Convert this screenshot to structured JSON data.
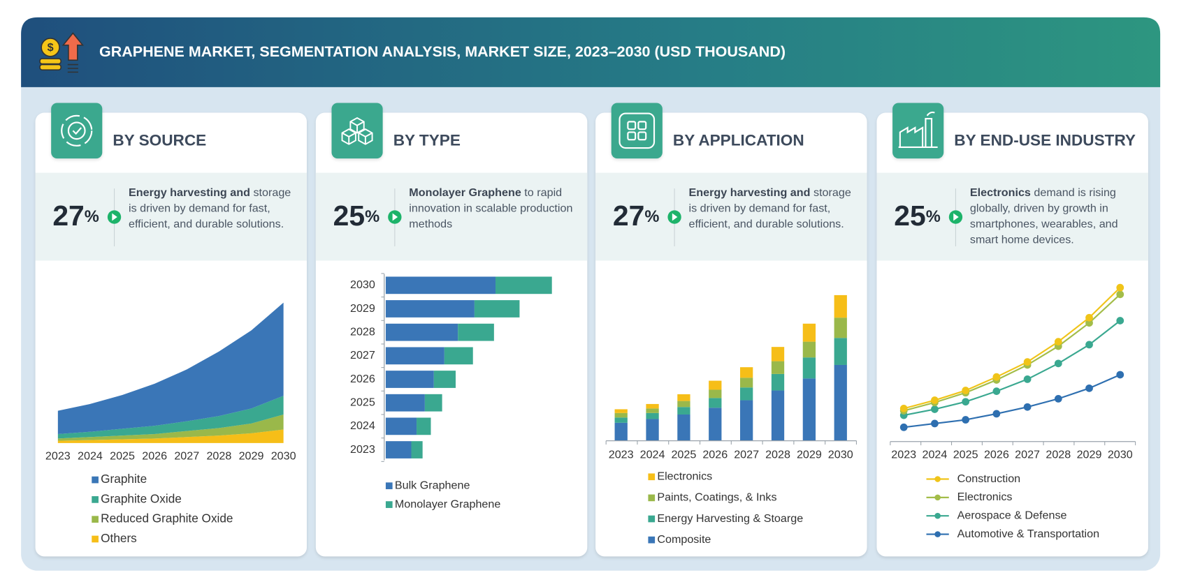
{
  "header": {
    "title": "GRAPHENE MARKET, SEGMENTATION ANALYSIS, MARKET SIZE, 2023–2030 (USD THOUSAND)"
  },
  "panels": [
    {
      "title": "BY SOURCE",
      "stat": {
        "value": 27,
        "unit": "%"
      },
      "description_bold": "Energy harvesting and",
      "description": " storage is driven by demand for fast, efficient, and durable solutions."
    },
    {
      "title": "BY TYPE",
      "stat": {
        "value": 25,
        "unit": "%"
      },
      "description_bold": "Monolayer Graphene",
      "description": " to rapid innovation in scalable production methods"
    },
    {
      "title": "BY APPLICATION",
      "stat": {
        "value": 27,
        "unit": "%"
      },
      "description_bold": "Energy harvesting and",
      "description": " storage is driven by demand for fast, efficient, and durable solutions."
    },
    {
      "title": "BY END-USE INDUSTRY",
      "stat": {
        "value": 25,
        "unit": "%"
      },
      "description_bold": "Electronics",
      "description": " demand is rising globally, driven by growth in smartphones, wearables, and smart home devices."
    }
  ],
  "chart_data": [
    {
      "type": "area",
      "stacked": true,
      "categories": [
        "2023",
        "2024",
        "2025",
        "2026",
        "2027",
        "2028",
        "2029",
        "2030"
      ],
      "series": [
        {
          "name": "Graphite",
          "color": "#3a76b7",
          "values": [
            31,
            37,
            45,
            56,
            69,
            86,
            104,
            124
          ]
        },
        {
          "name": "Graphite Oxide",
          "color": "#3aa890",
          "values": [
            6,
            7,
            9,
            11,
            13,
            16,
            20,
            25
          ]
        },
        {
          "name": "Reduced Graphite Oxide",
          "color": "#9ab84a",
          "values": [
            3,
            4,
            5,
            6,
            8,
            10,
            13,
            20
          ]
        },
        {
          "name": "Others",
          "color": "#f6be18",
          "values": [
            3,
            4,
            5,
            6,
            8,
            10,
            13,
            18
          ]
        }
      ]
    },
    {
      "type": "bar",
      "orientation": "horizontal",
      "stacked": true,
      "categories": [
        "2023",
        "2024",
        "2025",
        "2026",
        "2027",
        "2028",
        "2029",
        "2030"
      ],
      "series": [
        {
          "name": "Bulk Graphene",
          "color": "#3a76b7",
          "values": [
            34,
            41,
            52,
            64,
            78,
            96,
            118,
            146
          ]
        },
        {
          "name": "Monolayer Graphene",
          "color": "#3aa890",
          "values": [
            15,
            19,
            23,
            29,
            38,
            48,
            60,
            75
          ]
        }
      ]
    },
    {
      "type": "bar",
      "orientation": "vertical",
      "stacked": true,
      "categories": [
        "2023",
        "2024",
        "2025",
        "2026",
        "2027",
        "2028",
        "2029",
        "2030"
      ],
      "series": [
        {
          "name": "Electronics",
          "color": "#f6be18",
          "values": [
            5,
            6,
            9,
            12,
            14,
            19,
            24,
            30
          ]
        },
        {
          "name": "Paints, Coatings, & Inks",
          "color": "#9ab84a",
          "values": [
            6,
            6,
            8,
            11,
            13,
            17,
            21,
            27
          ]
        },
        {
          "name": "Energy Harvesting & Stoarge",
          "color": "#3aa890",
          "values": [
            7,
            8,
            10,
            13,
            17,
            22,
            28,
            36
          ]
        },
        {
          "name": "Composite",
          "color": "#3a76b7",
          "values": [
            24,
            29,
            35,
            44,
            54,
            67,
            83,
            101
          ]
        }
      ]
    },
    {
      "type": "line",
      "categories": [
        "2023",
        "2024",
        "2025",
        "2026",
        "2027",
        "2028",
        "2029",
        "2030"
      ],
      "series": [
        {
          "name": "Construction",
          "color": "#f0c419",
          "values": [
            44,
            55,
            68,
            86,
            106,
            133,
            165,
            205
          ]
        },
        {
          "name": "Electronics",
          "color": "#a3bd49",
          "values": [
            41,
            52,
            65,
            82,
            102,
            127,
            158,
            196
          ]
        },
        {
          "name": "Aerospace & Defense",
          "color": "#3aa890",
          "values": [
            35,
            43,
            53,
            67,
            83,
            104,
            129,
            161
          ]
        },
        {
          "name": "Automotive & Transportation",
          "color": "#2e6fb0",
          "values": [
            19,
            24,
            29,
            37,
            46,
            57,
            71,
            89
          ]
        }
      ]
    }
  ]
}
